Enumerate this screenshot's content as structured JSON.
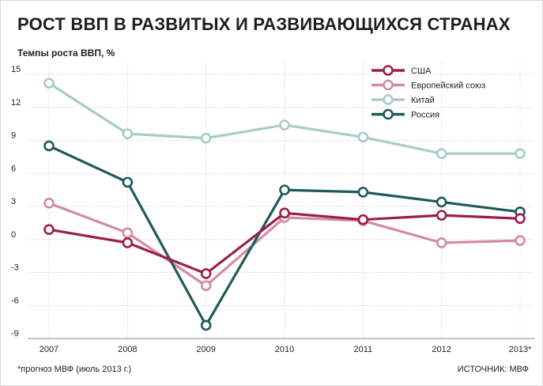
{
  "chart_data": {
    "type": "line",
    "title": "РОСТ ВВП В РАЗВИТЫХ И РАЗВИВАЮЩИХСЯ СТРАНАХ",
    "ylabel": "Темпы роста ВВП, %",
    "xlabel": "",
    "categories": [
      "2007",
      "2008",
      "2009",
      "2010",
      "2011",
      "2012",
      "2013*"
    ],
    "yticks": [
      "15",
      "12",
      "9",
      "6",
      "3",
      "0",
      "-3",
      "-6",
      "-9"
    ],
    "ylim": [
      -9,
      15
    ],
    "grid": true,
    "legend": "top-right",
    "series": [
      {
        "name": "США",
        "color": "#9b1e4a",
        "values": [
          0.9,
          -0.3,
          -3.1,
          2.4,
          1.8,
          2.2,
          1.9
        ]
      },
      {
        "name": "Европейский союз",
        "color": "#d48b9e",
        "values": [
          3.3,
          0.6,
          -4.2,
          2.0,
          1.7,
          -0.3,
          -0.1
        ]
      },
      {
        "name": "Китай",
        "color": "#a9ccc8",
        "values": [
          14.2,
          9.6,
          9.2,
          10.4,
          9.3,
          7.8,
          7.8
        ]
      },
      {
        "name": "Россия",
        "color": "#1f5a58",
        "values": [
          8.5,
          5.2,
          -7.8,
          4.5,
          4.3,
          3.4,
          2.5
        ]
      }
    ],
    "footnote": "*прогноз МВФ (июль 2013 г.)",
    "source": "ИСТОЧНИК: МВФ"
  }
}
